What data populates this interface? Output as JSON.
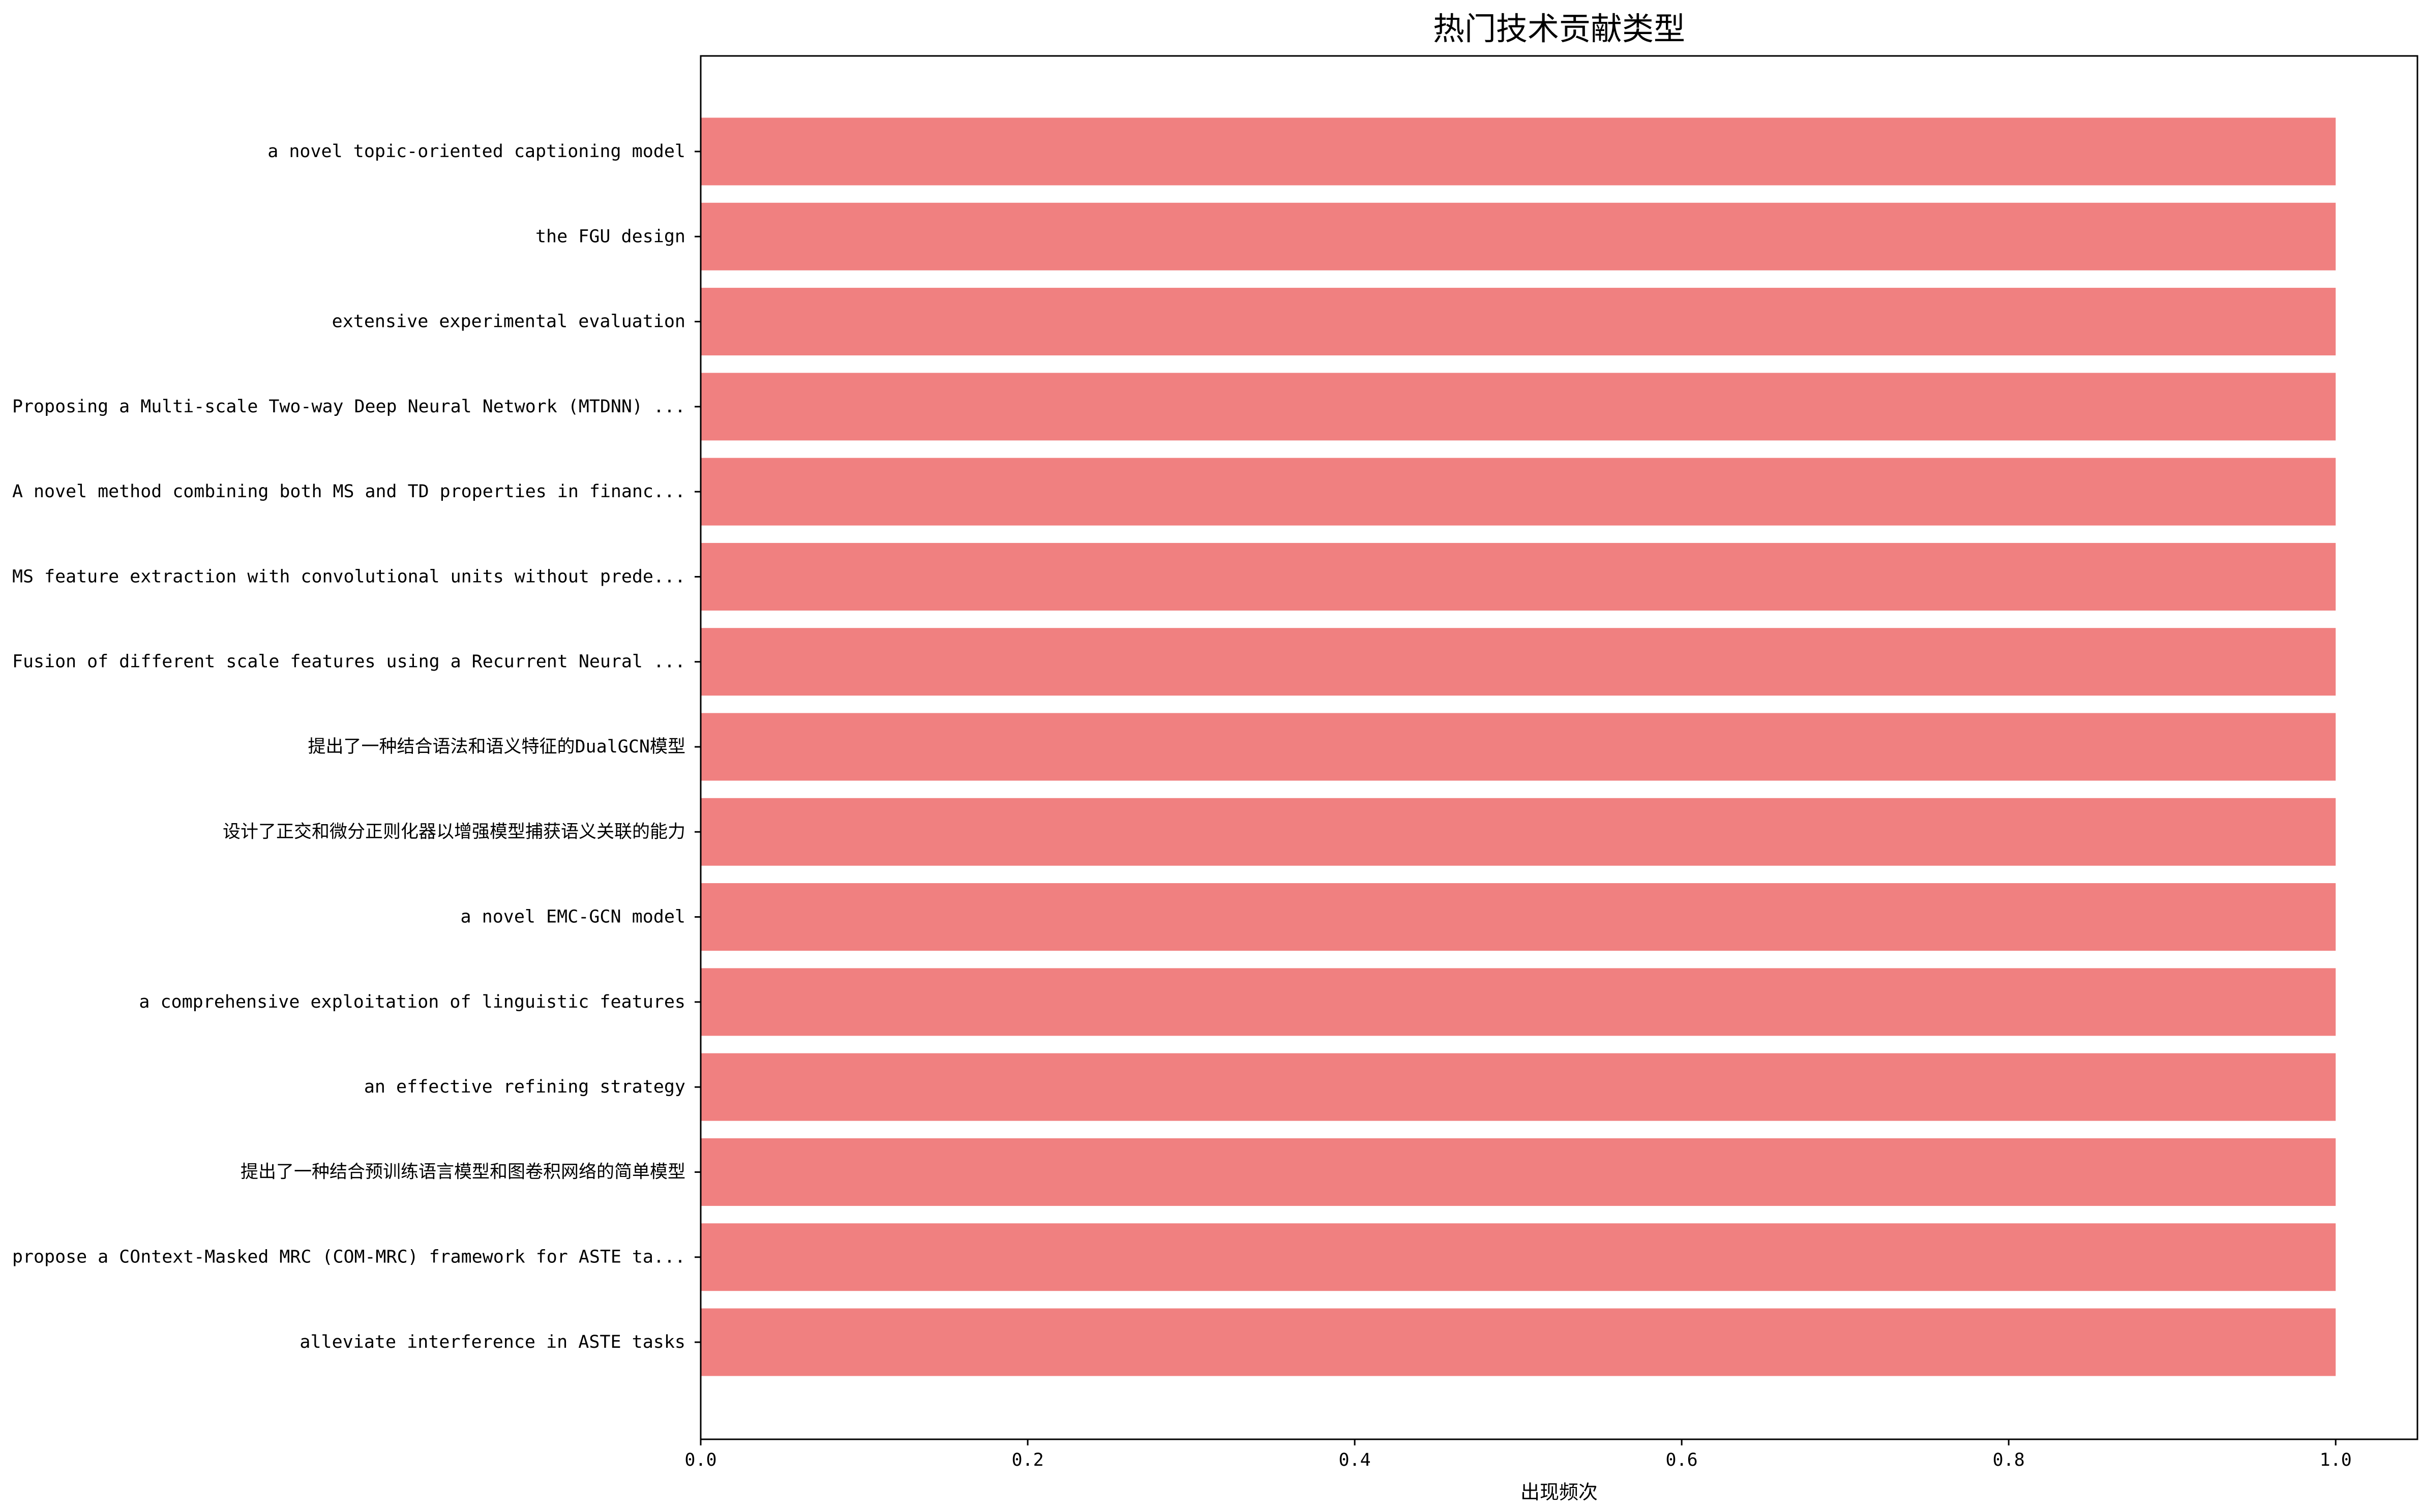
{
  "chart_data": {
    "type": "bar",
    "orientation": "horizontal",
    "title": "热门技术贡献类型",
    "xlabel": "出现频次",
    "ylabel": "",
    "xlim": [
      0,
      1.05
    ],
    "x_ticks": [
      "0.0",
      "0.2",
      "0.4",
      "0.6",
      "0.8",
      "1.0"
    ],
    "bar_color": "#f08080",
    "grid": false,
    "categories": [
      "a novel topic-oriented captioning model",
      "the FGU design",
      "extensive experimental evaluation",
      "Proposing a Multi-scale Two-way Deep Neural Network (MTDNN) ...",
      "A novel method combining both MS and TD properties in financ...",
      "MS feature extraction with convolutional units without prede...",
      "Fusion of different scale features using a Recurrent Neural ...",
      "提出了一种结合语法和语义特征的DualGCN模型",
      "设计了正交和微分正则化器以增强模型捕获语义关联的能力",
      "a novel EMC-GCN model",
      "a comprehensive exploitation of linguistic features",
      "an effective refining strategy",
      "提出了一种结合预训练语言模型和图卷积网络的简单模型",
      "propose a COntext-Masked MRC (COM-MRC) framework for ASTE ta...",
      "alleviate interference in ASTE tasks"
    ],
    "values": [
      1,
      1,
      1,
      1,
      1,
      1,
      1,
      1,
      1,
      1,
      1,
      1,
      1,
      1,
      1
    ]
  }
}
